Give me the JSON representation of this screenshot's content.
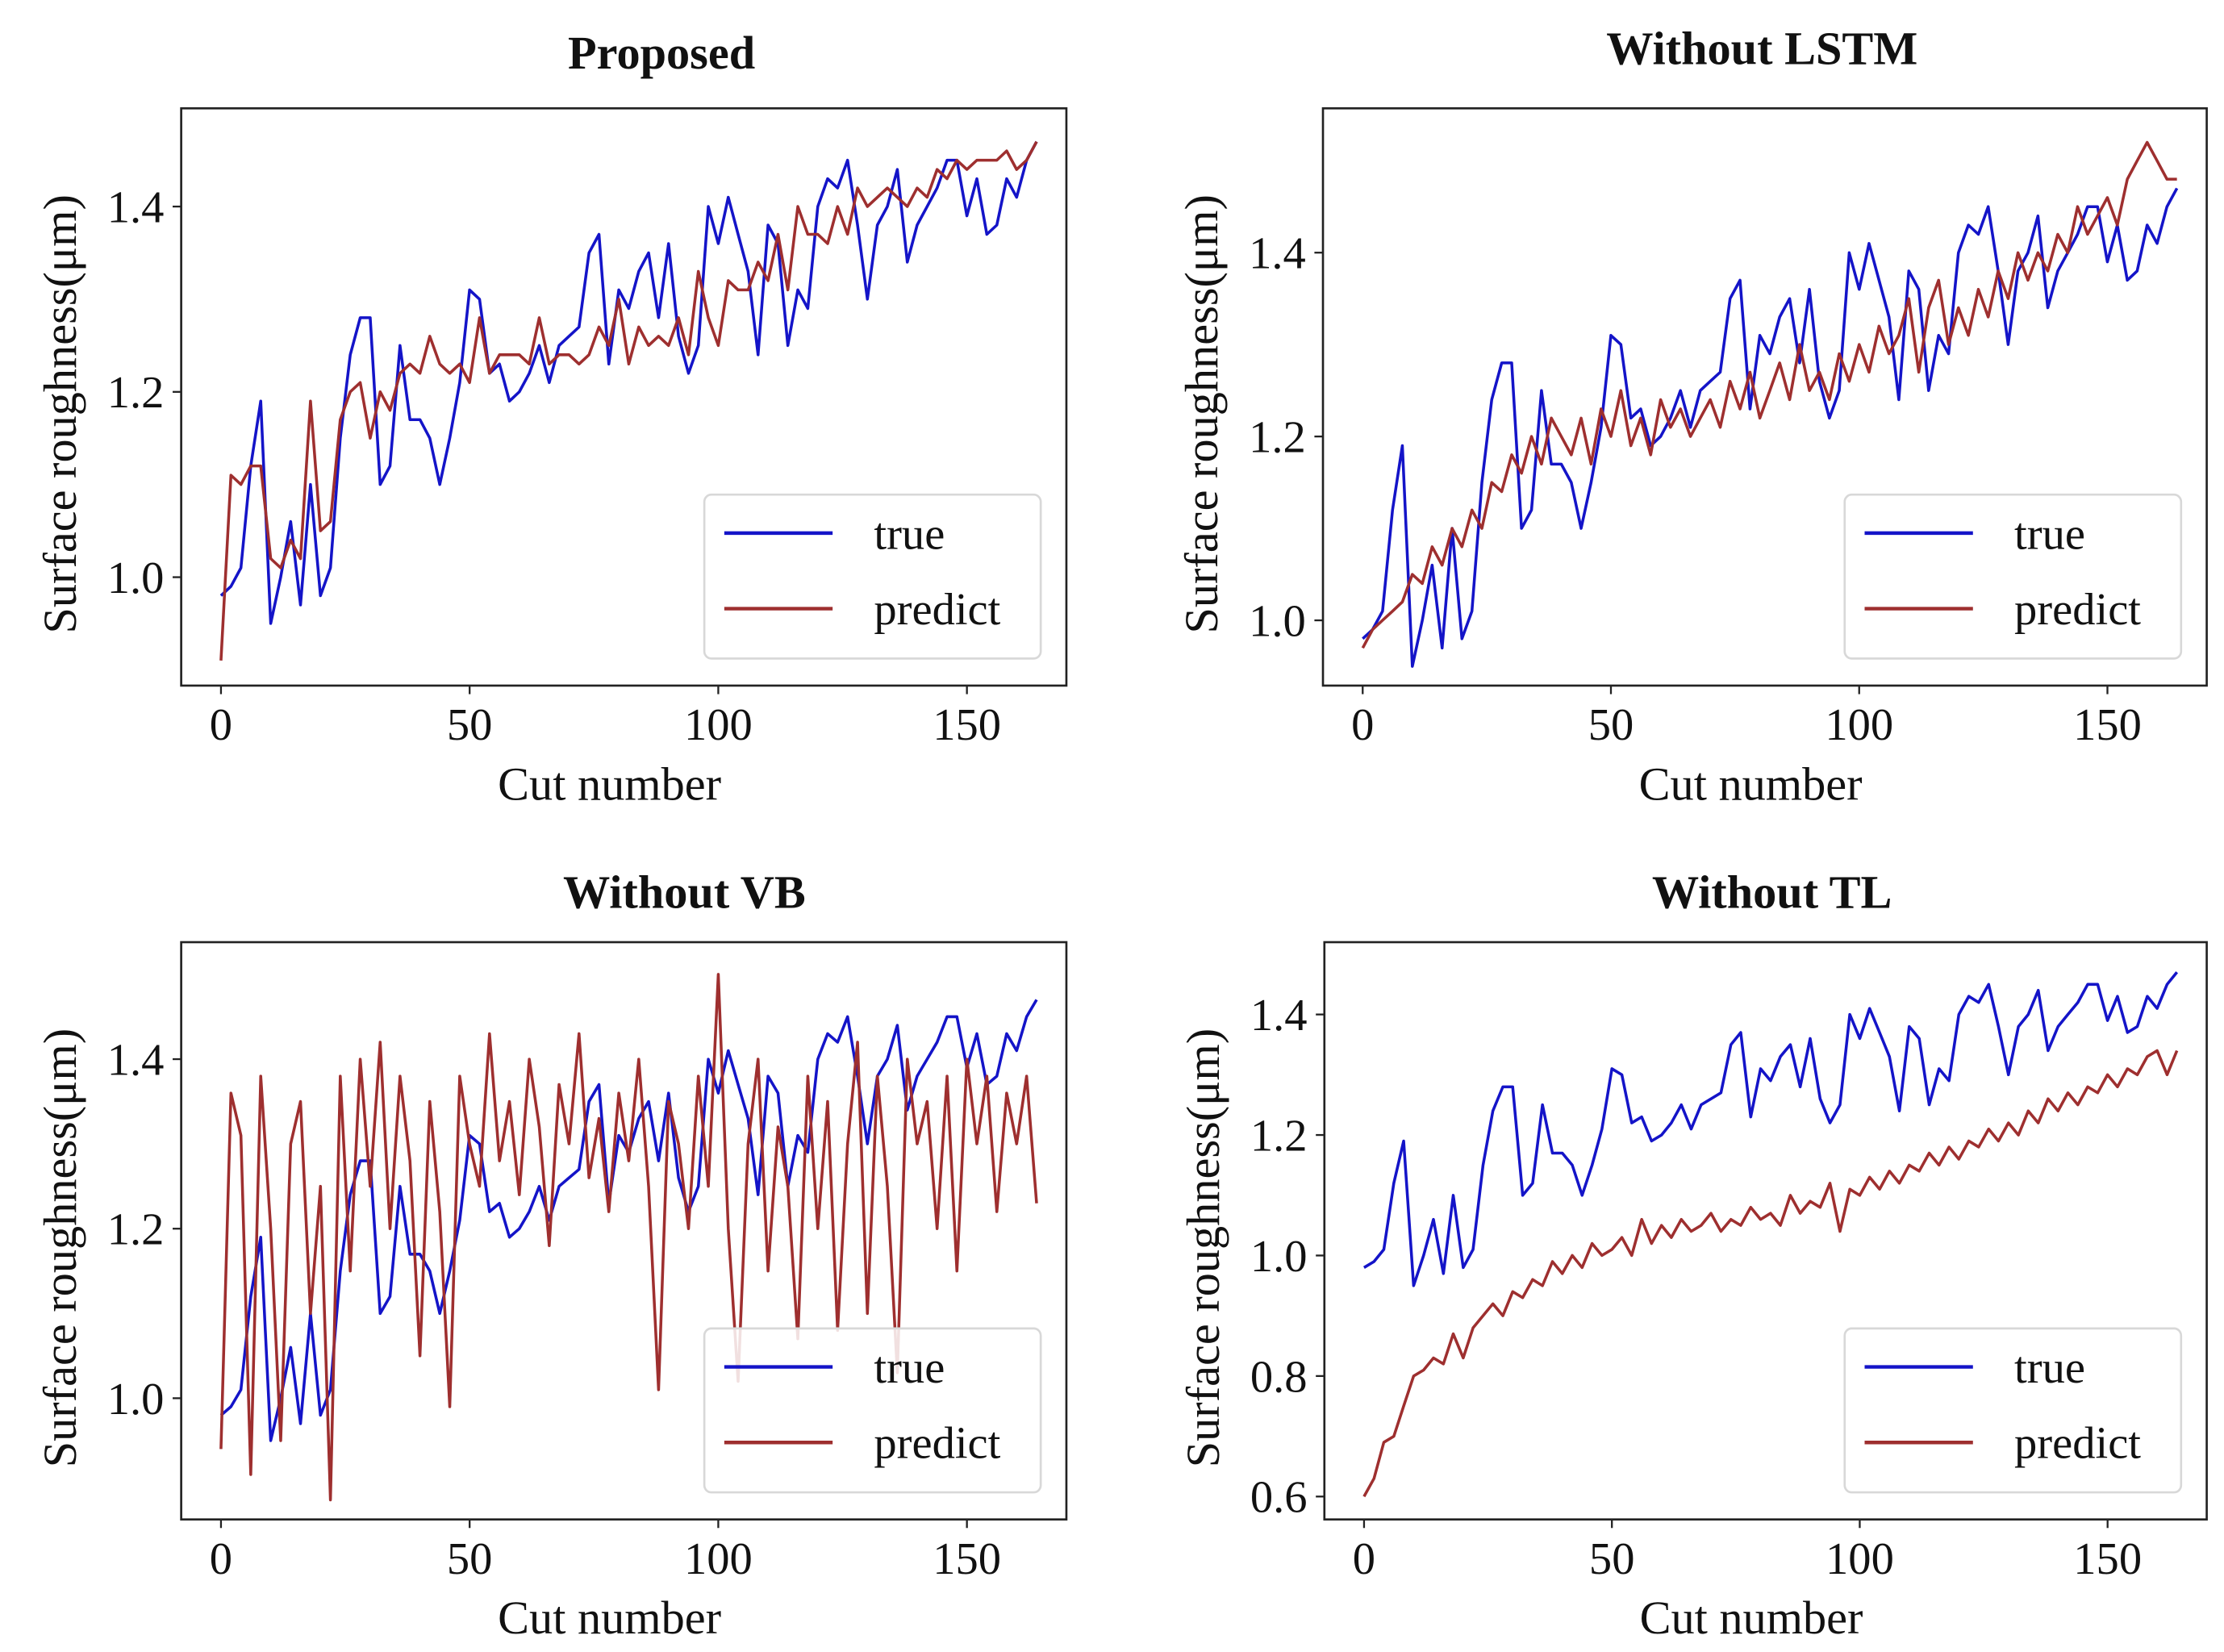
{
  "colors": {
    "true": "#1414c8",
    "predict": "#9e2f2f",
    "axis": "#222222",
    "legend_border": "#d8d8d8"
  },
  "chart_data": [
    {
      "type": "line",
      "title": "Proposed",
      "xlabel": "Cut number",
      "ylabel": "Surface roughness(μm)",
      "xlim": [
        -8,
        170
      ],
      "ylim": [
        0.883,
        1.506
      ],
      "xticks": [
        0,
        50,
        100,
        150
      ],
      "xtick_labels": [
        "0",
        "50",
        "100",
        "150"
      ],
      "yticks": [
        1.0,
        1.2,
        1.4
      ],
      "ytick_labels": [
        "1.0",
        "1.2",
        "1.4"
      ],
      "grid": false,
      "legend": {
        "position": "lower-right",
        "entries": [
          "true",
          "predict"
        ]
      },
      "x_start": 0,
      "x_step": 2,
      "series": [
        {
          "name": "true",
          "values": [
            0.98,
            0.99,
            1.01,
            1.12,
            1.19,
            0.95,
            1.0,
            1.06,
            0.97,
            1.1,
            0.98,
            1.01,
            1.15,
            1.24,
            1.28,
            1.28,
            1.1,
            1.12,
            1.25,
            1.17,
            1.17,
            1.15,
            1.1,
            1.15,
            1.21,
            1.31,
            1.3,
            1.22,
            1.23,
            1.19,
            1.2,
            1.22,
            1.25,
            1.21,
            1.25,
            1.26,
            1.27,
            1.35,
            1.37,
            1.23,
            1.31,
            1.29,
            1.33,
            1.35,
            1.28,
            1.36,
            1.26,
            1.22,
            1.25,
            1.4,
            1.36,
            1.41,
            1.37,
            1.33,
            1.24,
            1.38,
            1.36,
            1.25,
            1.31,
            1.29,
            1.4,
            1.43,
            1.42,
            1.45,
            1.38,
            1.3,
            1.38,
            1.4,
            1.44,
            1.34,
            1.38,
            1.4,
            1.42,
            1.45,
            1.45,
            1.39,
            1.43,
            1.37,
            1.38,
            1.43,
            1.41,
            1.45,
            1.47
          ]
        },
        {
          "name": "predict",
          "values": [
            0.91,
            1.11,
            1.1,
            1.12,
            1.12,
            1.02,
            1.01,
            1.04,
            1.02,
            1.19,
            1.05,
            1.06,
            1.17,
            1.2,
            1.21,
            1.15,
            1.2,
            1.18,
            1.22,
            1.23,
            1.22,
            1.26,
            1.23,
            1.22,
            1.23,
            1.21,
            1.28,
            1.22,
            1.24,
            1.24,
            1.24,
            1.23,
            1.28,
            1.23,
            1.24,
            1.24,
            1.23,
            1.24,
            1.27,
            1.25,
            1.3,
            1.23,
            1.27,
            1.25,
            1.26,
            1.25,
            1.28,
            1.24,
            1.33,
            1.28,
            1.25,
            1.32,
            1.31,
            1.31,
            1.34,
            1.32,
            1.37,
            1.31,
            1.4,
            1.37,
            1.37,
            1.36,
            1.4,
            1.37,
            1.42,
            1.4,
            1.41,
            1.42,
            1.41,
            1.4,
            1.42,
            1.41,
            1.44,
            1.43,
            1.45,
            1.44,
            1.45,
            1.45,
            1.45,
            1.46,
            1.44,
            1.45,
            1.47
          ]
        }
      ]
    },
    {
      "type": "line",
      "title": "Without LSTM",
      "xlabel": "Cut number",
      "ylabel": "Surface roughness(μm)",
      "xlim": [
        -8,
        170
      ],
      "ylim": [
        0.929,
        1.557
      ],
      "xticks": [
        0,
        50,
        100,
        150
      ],
      "xtick_labels": [
        "0",
        "50",
        "100",
        "150"
      ],
      "yticks": [
        1.0,
        1.2,
        1.4
      ],
      "ytick_labels": [
        "1.0",
        "1.2",
        "1.4"
      ],
      "grid": false,
      "legend": {
        "position": "lower-right",
        "entries": [
          "true",
          "predict"
        ]
      },
      "x_start": 0,
      "x_step": 2,
      "series": [
        {
          "name": "true",
          "values": [
            0.98,
            0.99,
            1.01,
            1.12,
            1.19,
            0.95,
            1.0,
            1.06,
            0.97,
            1.1,
            0.98,
            1.01,
            1.15,
            1.24,
            1.28,
            1.28,
            1.1,
            1.12,
            1.25,
            1.17,
            1.17,
            1.15,
            1.1,
            1.15,
            1.21,
            1.31,
            1.3,
            1.22,
            1.23,
            1.19,
            1.2,
            1.22,
            1.25,
            1.21,
            1.25,
            1.26,
            1.27,
            1.35,
            1.37,
            1.23,
            1.31,
            1.29,
            1.33,
            1.35,
            1.28,
            1.36,
            1.26,
            1.22,
            1.25,
            1.4,
            1.36,
            1.41,
            1.37,
            1.33,
            1.24,
            1.38,
            1.36,
            1.25,
            1.31,
            1.29,
            1.4,
            1.43,
            1.42,
            1.45,
            1.38,
            1.3,
            1.38,
            1.4,
            1.44,
            1.34,
            1.38,
            1.4,
            1.42,
            1.45,
            1.45,
            1.39,
            1.43,
            1.37,
            1.38,
            1.43,
            1.41,
            1.45,
            1.47
          ]
        },
        {
          "name": "predict",
          "values": [
            0.97,
            0.99,
            1.0,
            1.01,
            1.02,
            1.05,
            1.04,
            1.08,
            1.06,
            1.1,
            1.08,
            1.12,
            1.1,
            1.15,
            1.14,
            1.18,
            1.16,
            1.2,
            1.17,
            1.22,
            1.2,
            1.18,
            1.22,
            1.17,
            1.23,
            1.2,
            1.25,
            1.19,
            1.22,
            1.18,
            1.24,
            1.21,
            1.23,
            1.2,
            1.22,
            1.24,
            1.21,
            1.26,
            1.23,
            1.27,
            1.22,
            1.25,
            1.28,
            1.24,
            1.3,
            1.25,
            1.27,
            1.24,
            1.29,
            1.26,
            1.3,
            1.27,
            1.32,
            1.29,
            1.31,
            1.35,
            1.27,
            1.34,
            1.37,
            1.3,
            1.34,
            1.31,
            1.36,
            1.33,
            1.38,
            1.35,
            1.4,
            1.37,
            1.4,
            1.38,
            1.42,
            1.4,
            1.45,
            1.42,
            1.44,
            1.46,
            1.43,
            1.48,
            1.5,
            1.52,
            1.5,
            1.48,
            1.48
          ]
        }
      ]
    },
    {
      "type": "line",
      "title": "Without VB",
      "xlabel": "Cut number",
      "ylabel": "Surface roughness(μm)",
      "xlim": [
        -8,
        170
      ],
      "ylim": [
        0.857,
        1.538
      ],
      "xticks": [
        0,
        50,
        100,
        150
      ],
      "xtick_labels": [
        "0",
        "50",
        "100",
        "150"
      ],
      "yticks": [
        1.0,
        1.2,
        1.4
      ],
      "ytick_labels": [
        "1.0",
        "1.2",
        "1.4"
      ],
      "grid": false,
      "legend": {
        "position": "lower-right",
        "entries": [
          "true",
          "predict"
        ]
      },
      "x_start": 0,
      "x_step": 2,
      "series": [
        {
          "name": "true",
          "values": [
            0.98,
            0.99,
            1.01,
            1.12,
            1.19,
            0.95,
            1.0,
            1.06,
            0.97,
            1.1,
            0.98,
            1.01,
            1.15,
            1.24,
            1.28,
            1.28,
            1.1,
            1.12,
            1.25,
            1.17,
            1.17,
            1.15,
            1.1,
            1.15,
            1.21,
            1.31,
            1.3,
            1.22,
            1.23,
            1.19,
            1.2,
            1.22,
            1.25,
            1.21,
            1.25,
            1.26,
            1.27,
            1.35,
            1.37,
            1.23,
            1.31,
            1.29,
            1.33,
            1.35,
            1.28,
            1.36,
            1.26,
            1.22,
            1.25,
            1.4,
            1.36,
            1.41,
            1.37,
            1.33,
            1.24,
            1.38,
            1.36,
            1.25,
            1.31,
            1.29,
            1.4,
            1.43,
            1.42,
            1.45,
            1.38,
            1.3,
            1.38,
            1.4,
            1.44,
            1.34,
            1.38,
            1.4,
            1.42,
            1.45,
            1.45,
            1.39,
            1.43,
            1.37,
            1.38,
            1.43,
            1.41,
            1.45,
            1.47
          ]
        },
        {
          "name": "predict",
          "values": [
            0.94,
            1.36,
            1.31,
            0.91,
            1.38,
            1.2,
            0.95,
            1.3,
            1.35,
            1.1,
            1.25,
            0.88,
            1.38,
            1.15,
            1.4,
            1.25,
            1.42,
            1.2,
            1.38,
            1.28,
            1.05,
            1.35,
            1.22,
            0.99,
            1.38,
            1.3,
            1.25,
            1.43,
            1.28,
            1.35,
            1.24,
            1.4,
            1.32,
            1.18,
            1.37,
            1.3,
            1.43,
            1.26,
            1.33,
            1.22,
            1.36,
            1.28,
            1.4,
            1.25,
            1.01,
            1.35,
            1.3,
            1.2,
            1.38,
            1.25,
            1.5,
            1.2,
            1.02,
            1.3,
            1.4,
            1.15,
            1.32,
            1.25,
            1.07,
            1.38,
            1.2,
            1.35,
            1.08,
            1.3,
            1.42,
            1.1,
            1.38,
            1.25,
            1.03,
            1.4,
            1.3,
            1.35,
            1.2,
            1.38,
            1.15,
            1.4,
            1.3,
            1.38,
            1.22,
            1.36,
            1.3,
            1.38,
            1.23
          ]
        }
      ]
    },
    {
      "type": "line",
      "title": "Without TL",
      "xlabel": "Cut number",
      "ylabel": "Surface roughness(μm)",
      "xlim": [
        -8,
        170
      ],
      "ylim": [
        0.562,
        1.52
      ],
      "xticks": [
        0,
        50,
        100,
        150
      ],
      "xtick_labels": [
        "0",
        "50",
        "100",
        "150"
      ],
      "yticks": [
        0.6,
        0.8,
        1.0,
        1.2,
        1.4
      ],
      "ytick_labels": [
        "0.6",
        "0.8",
        "1.0",
        "1.2",
        "1.4"
      ],
      "grid": false,
      "legend": {
        "position": "lower-right",
        "entries": [
          "true",
          "predict"
        ]
      },
      "x_start": 0,
      "x_step": 2,
      "series": [
        {
          "name": "true",
          "values": [
            0.98,
            0.99,
            1.01,
            1.12,
            1.19,
            0.95,
            1.0,
            1.06,
            0.97,
            1.1,
            0.98,
            1.01,
            1.15,
            1.24,
            1.28,
            1.28,
            1.1,
            1.12,
            1.25,
            1.17,
            1.17,
            1.15,
            1.1,
            1.15,
            1.21,
            1.31,
            1.3,
            1.22,
            1.23,
            1.19,
            1.2,
            1.22,
            1.25,
            1.21,
            1.25,
            1.26,
            1.27,
            1.35,
            1.37,
            1.23,
            1.31,
            1.29,
            1.33,
            1.35,
            1.28,
            1.36,
            1.26,
            1.22,
            1.25,
            1.4,
            1.36,
            1.41,
            1.37,
            1.33,
            1.24,
            1.38,
            1.36,
            1.25,
            1.31,
            1.29,
            1.4,
            1.43,
            1.42,
            1.45,
            1.38,
            1.3,
            1.38,
            1.4,
            1.44,
            1.34,
            1.38,
            1.4,
            1.42,
            1.45,
            1.45,
            1.39,
            1.43,
            1.37,
            1.38,
            1.43,
            1.41,
            1.45,
            1.47
          ]
        },
        {
          "name": "predict",
          "values": [
            0.6,
            0.63,
            0.69,
            0.7,
            0.75,
            0.8,
            0.81,
            0.83,
            0.82,
            0.87,
            0.83,
            0.88,
            0.9,
            0.92,
            0.9,
            0.94,
            0.93,
            0.96,
            0.95,
            0.99,
            0.97,
            1.0,
            0.98,
            1.02,
            1.0,
            1.01,
            1.03,
            1.0,
            1.06,
            1.02,
            1.05,
            1.03,
            1.06,
            1.04,
            1.05,
            1.07,
            1.04,
            1.06,
            1.05,
            1.08,
            1.06,
            1.07,
            1.05,
            1.1,
            1.07,
            1.09,
            1.08,
            1.12,
            1.04,
            1.11,
            1.1,
            1.13,
            1.11,
            1.14,
            1.12,
            1.15,
            1.14,
            1.17,
            1.15,
            1.18,
            1.16,
            1.19,
            1.18,
            1.21,
            1.19,
            1.22,
            1.2,
            1.24,
            1.22,
            1.26,
            1.24,
            1.27,
            1.25,
            1.28,
            1.27,
            1.3,
            1.28,
            1.31,
            1.3,
            1.33,
            1.34,
            1.3,
            1.34
          ]
        }
      ]
    }
  ]
}
